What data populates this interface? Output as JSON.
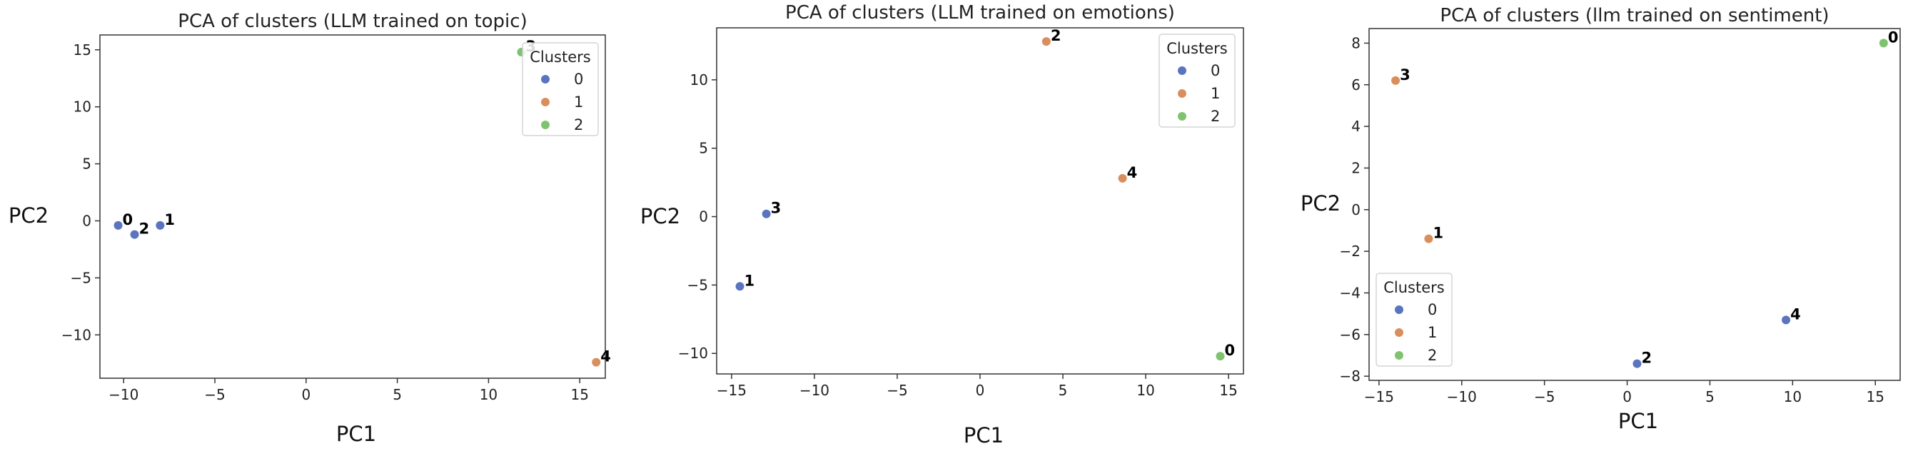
{
  "chart_data": [
    {
      "type": "scatter",
      "title": "PCA of clusters (LLM trained on topic)",
      "xlabel": "PC1",
      "ylabel": "PC2",
      "xlim": [
        -11.3,
        16.4
      ],
      "ylim": [
        -13.8,
        16.3
      ],
      "xticks": [
        -10,
        -5,
        0,
        5,
        10,
        15
      ],
      "yticks": [
        -10,
        -5,
        0,
        5,
        10,
        15
      ],
      "grid": false,
      "legend": {
        "title": "Clusters",
        "placement": "upper right",
        "entries": [
          "0",
          "1",
          "2"
        ]
      },
      "points": [
        {
          "label": "0",
          "x": -10.3,
          "y": -0.4,
          "cluster": "0"
        },
        {
          "label": "2",
          "x": -9.4,
          "y": -1.2,
          "cluster": "0"
        },
        {
          "label": "1",
          "x": -8.0,
          "y": -0.4,
          "cluster": "0"
        },
        {
          "label": "3",
          "x": 11.8,
          "y": 14.8,
          "cluster": "2"
        },
        {
          "label": "4",
          "x": 15.9,
          "y": -12.4,
          "cluster": "1"
        }
      ]
    },
    {
      "type": "scatter",
      "title": "PCA of clusters (LLM trained on emotions)",
      "xlabel": "PC1",
      "ylabel": "PC2",
      "xlim": [
        -15.9,
        15.9
      ],
      "ylim": [
        -11.5,
        13.8
      ],
      "xticks": [
        -15,
        -10,
        -5,
        0,
        5,
        10,
        15
      ],
      "yticks": [
        -10,
        -5,
        0,
        5,
        10
      ],
      "grid": false,
      "legend": {
        "title": "Clusters",
        "placement": "upper right",
        "entries": [
          "0",
          "1",
          "2"
        ]
      },
      "points": [
        {
          "label": "2",
          "x": 4.0,
          "y": 12.8,
          "cluster": "1"
        },
        {
          "label": "3",
          "x": -12.9,
          "y": 0.2,
          "cluster": "0"
        },
        {
          "label": "1",
          "x": -14.5,
          "y": -5.1,
          "cluster": "0"
        },
        {
          "label": "4",
          "x": 8.6,
          "y": 2.8,
          "cluster": "1"
        },
        {
          "label": "0",
          "x": 14.5,
          "y": -10.2,
          "cluster": "2"
        }
      ]
    },
    {
      "type": "scatter",
      "title": "PCA of clusters (llm trained on sentiment)",
      "xlabel": "PC1",
      "ylabel": "PC2",
      "xlim": [
        -15.6,
        16.5
      ],
      "ylim": [
        -8.2,
        8.7
      ],
      "xticks": [
        -15,
        -10,
        -5,
        0,
        5,
        10,
        15
      ],
      "yticks": [
        -8,
        -6,
        -4,
        -2,
        0,
        2,
        4,
        6,
        8
      ],
      "grid": false,
      "legend": {
        "title": "Clusters",
        "placement": "lower left",
        "entries": [
          "0",
          "1",
          "2"
        ]
      },
      "points": [
        {
          "label": "0",
          "x": 15.5,
          "y": 8.0,
          "cluster": "2"
        },
        {
          "label": "3",
          "x": -14.0,
          "y": 6.2,
          "cluster": "1"
        },
        {
          "label": "1",
          "x": -12.0,
          "y": -1.4,
          "cluster": "1"
        },
        {
          "label": "4",
          "x": 9.6,
          "y": -5.3,
          "cluster": "0"
        },
        {
          "label": "2",
          "x": 0.6,
          "y": -7.4,
          "cluster": "0"
        }
      ]
    }
  ],
  "colors": {
    "cluster_0": "#5a74bf",
    "cluster_1": "#d98e5c",
    "cluster_2": "#7fc270",
    "axis": "#333333",
    "legend_border": "#cccccc"
  }
}
